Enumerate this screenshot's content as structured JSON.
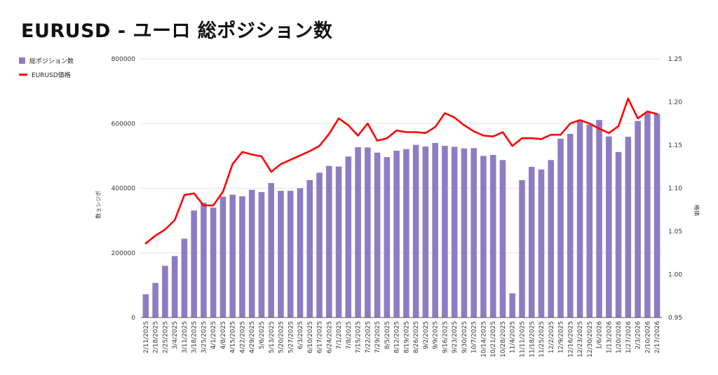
{
  "title": "EURUSD - ユーロ 総ポジション数",
  "colors": {
    "bar": "#8e7cc3",
    "line": "#ff0000",
    "grid": "#e3e3e3",
    "text": "#333333"
  },
  "chart_data": {
    "type": "bar+line",
    "categories": [
      "2/11/2025",
      "2/18/2025",
      "2/25/2025",
      "3/4/2025",
      "3/11/2025",
      "3/18/2025",
      "3/25/2025",
      "4/1/2025",
      "4/8/2025",
      "4/15/2025",
      "4/22/2025",
      "4/29/2025",
      "5/6/2025",
      "5/13/2025",
      "5/20/2025",
      "5/27/2025",
      "6/3/2025",
      "6/10/2025",
      "6/17/2025",
      "6/24/2025",
      "7/1/2025",
      "7/8/2025",
      "7/15/2025",
      "7/22/2025",
      "7/29/2025",
      "8/5/2025",
      "8/12/2025",
      "8/19/2025",
      "8/26/2025",
      "9/2/2025",
      "9/9/2025",
      "9/16/2025",
      "9/23/2025",
      "9/30/2025",
      "10/7/2025",
      "10/14/2025",
      "10/21/2025",
      "10/28/2025",
      "11/4/2025",
      "11/11/2025",
      "11/18/2025",
      "11/25/2025",
      "12/2/2025",
      "12/9/2025",
      "12/16/2025",
      "12/23/2025",
      "12/30/2025",
      "1/6/2026",
      "1/13/2026",
      "1/20/2026",
      "1/27/2026",
      "2/3/2026",
      "2/10/2026",
      "2/17/2026"
    ],
    "x_tick_labels": [
      "2/11/2025",
      "2/18/2025",
      "2/25/2025",
      "3/4/2025",
      "3/11/2025",
      "3/18/2025",
      "3/25/2025",
      "4/1/2025",
      "4/8/2025",
      "4/15/2025",
      "4/22/2025",
      "4/29/2025",
      "5/6/2025",
      "5/13/2025",
      "5/20/2025",
      "5/27/2025",
      "6/3/2025",
      "6/10/2025",
      "6/17/2025",
      "6/24/2025",
      "7/1/2025",
      "7/8/2025",
      "7/15/2025",
      "7/22/2025",
      "7/29/2025",
      "8/5/2025",
      "8/12/2025",
      "8/19/2025",
      "8/26/2025",
      "9/2/2025",
      "9/9/2025",
      "9/16/2025",
      "9/23/2025",
      "9/30/2025",
      "10/7/2025",
      "10/14/2025",
      "10/21/2025",
      "10/28/2025",
      "11/4/2025",
      "11/11/2025",
      "11/18/2025",
      "11/25/2025",
      "12/2/2025",
      "12/9/2025",
      "12/16/2025",
      "12/23/2025",
      "12/30/2025",
      "1/6/2026",
      "1/13/2026",
      "1/20/2026",
      "1/27/2026",
      "2/3/2026",
      "2/10/2026",
      "2/17/2026"
    ],
    "series": [
      {
        "name": "総ポジション数",
        "kind": "bar",
        "axis": "left",
        "values": [
          72000,
          107000,
          160000,
          190000,
          244000,
          331000,
          355000,
          340000,
          374000,
          380000,
          375000,
          395000,
          388000,
          416000,
          392000,
          392000,
          400000,
          425000,
          448000,
          469000,
          467000,
          498000,
          527000,
          526000,
          510000,
          496000,
          516000,
          521000,
          534000,
          529000,
          540000,
          531000,
          528000,
          523000,
          524000,
          500000,
          503000,
          487000,
          75000,
          425000,
          466000,
          458000,
          487000,
          553000,
          568000,
          610000,
          597000,
          611000,
          560000,
          512000,
          559000,
          608000,
          635000,
          630000
        ]
      },
      {
        "name": "EURUSD価格",
        "kind": "line",
        "axis": "right",
        "values": [
          1.036,
          1.045,
          1.052,
          1.063,
          1.092,
          1.094,
          1.08,
          1.08,
          1.096,
          1.128,
          1.142,
          1.139,
          1.137,
          1.119,
          1.128,
          1.133,
          1.138,
          1.143,
          1.149,
          1.163,
          1.181,
          1.173,
          1.161,
          1.175,
          1.155,
          1.158,
          1.167,
          1.165,
          1.165,
          1.164,
          1.171,
          1.187,
          1.182,
          1.173,
          1.166,
          1.161,
          1.16,
          1.165,
          1.149,
          1.158,
          1.158,
          1.157,
          1.162,
          1.162,
          1.175,
          1.179,
          1.175,
          1.169,
          1.164,
          1.172,
          1.204,
          1.181,
          1.189,
          1.186
        ]
      }
    ],
    "y_left": {
      "label": "数ョシジポ",
      "min": 0,
      "max": 800000,
      "ticks": [
        0,
        200000,
        400000,
        600000,
        800000
      ],
      "tick_labels": [
        "0",
        "200000",
        "400000",
        "600000",
        "800000"
      ]
    },
    "y_right": {
      "label": "格価",
      "min": 0.95,
      "max": 1.25,
      "ticks": [
        0.95,
        1.0,
        1.05,
        1.1,
        1.15,
        1.2,
        1.25
      ],
      "tick_labels": [
        "0.95",
        "1.00",
        "1.05",
        "1.10",
        "1.15",
        "1.20",
        "1.25"
      ]
    },
    "grid": true,
    "legend_position": "left"
  }
}
